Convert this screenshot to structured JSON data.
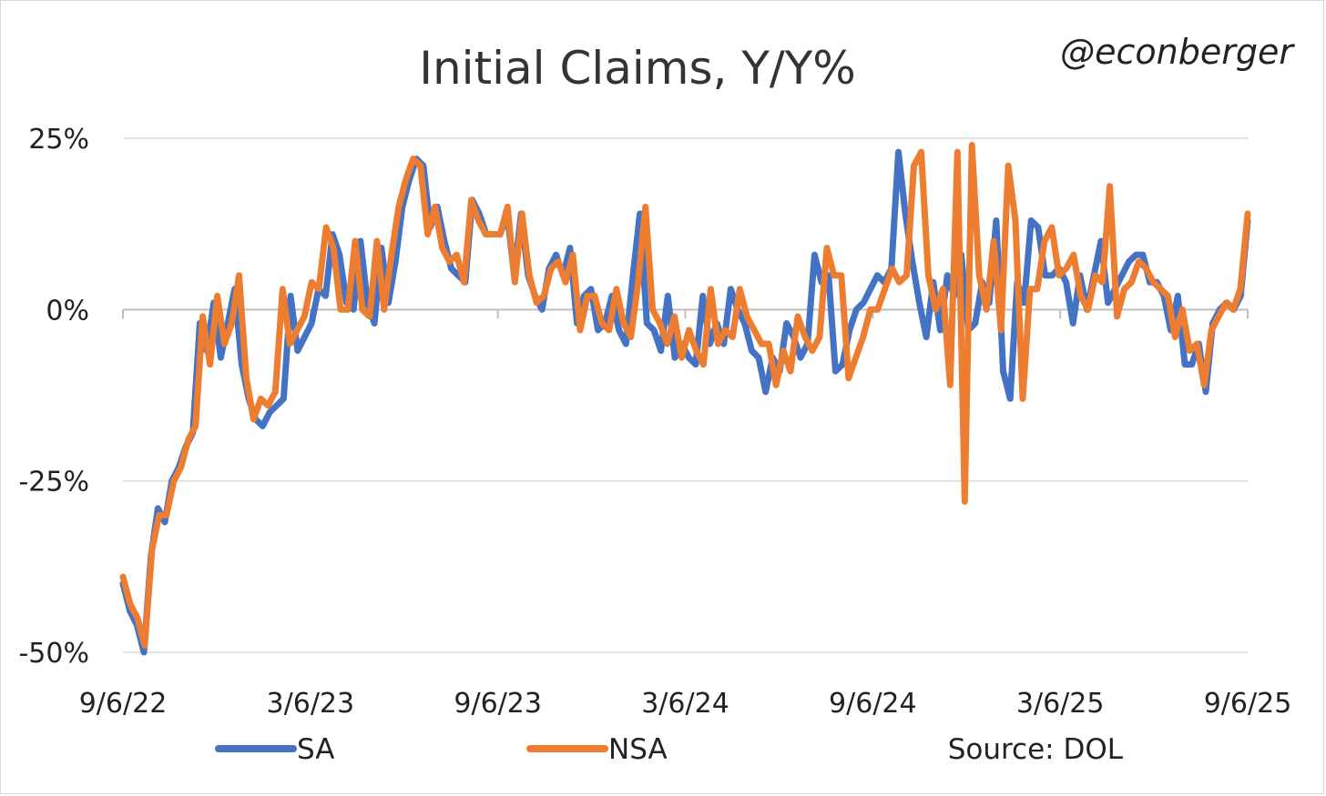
{
  "handle": "@econberger",
  "source": "Source: DOL",
  "chart_data": {
    "type": "line",
    "title": "Initial Claims, Y/Y%",
    "xlabel": "",
    "ylabel": "",
    "y_unit": "%",
    "ylim": [
      -50,
      25
    ],
    "y_ticks": [
      25,
      0,
      -25,
      -50
    ],
    "y_tick_labels": [
      "25%",
      "0%",
      "-25%",
      "-50%"
    ],
    "x_tick_labels": [
      "9/6/22",
      "3/6/23",
      "9/6/23",
      "3/6/24",
      "9/6/24",
      "3/6/25",
      "9/6/25"
    ],
    "x_start": "9/6/22",
    "x_end": "9/6/25",
    "grid": true,
    "legend_position": "bottom",
    "colors": {
      "SA": "#4472C4",
      "NSA": "#ED7D31"
    },
    "series": [
      {
        "name": "SA",
        "values": [
          -40,
          -44,
          -46,
          -50,
          -36,
          -29,
          -31,
          -25,
          -23,
          -20,
          -18,
          -2,
          -6,
          1,
          -7,
          -2,
          3,
          -8,
          -13,
          -16,
          -17,
          -15,
          -14,
          -13,
          2,
          -6,
          -4,
          -2,
          3,
          2,
          11,
          8,
          1,
          0,
          10,
          1,
          -2,
          9,
          1,
          7,
          15,
          19,
          22,
          21,
          12,
          15,
          10,
          6,
          5,
          4,
          16,
          14,
          11,
          11,
          11,
          14,
          5,
          14,
          5,
          2,
          0,
          6,
          8,
          5,
          9,
          -2,
          2,
          3,
          -3,
          -2,
          2,
          -3,
          -5,
          5,
          14,
          -2,
          -3,
          -6,
          2,
          -7,
          -5,
          -7,
          -8,
          2,
          -5,
          -2,
          -5,
          3,
          0,
          -2,
          -6,
          -7,
          -12,
          -7,
          -9,
          -2,
          -4,
          -7,
          -5,
          8,
          4,
          5,
          -9,
          -8,
          -3,
          0,
          1,
          3,
          5,
          4,
          6,
          23,
          14,
          7,
          1,
          -4,
          4,
          -3,
          5,
          2,
          8,
          -3,
          -2,
          4,
          1,
          13,
          -9,
          -13,
          4,
          1,
          13,
          12,
          5,
          5,
          6,
          4,
          -2,
          5,
          0,
          5,
          10,
          1,
          3,
          5,
          7,
          8,
          8,
          4,
          4,
          2,
          -3,
          2,
          -8,
          -8,
          -5,
          -12,
          -2,
          0,
          1,
          0,
          2,
          13
        ]
      },
      {
        "name": "NSA",
        "values": [
          -39,
          -43,
          -45,
          -49,
          -35,
          -30,
          -30,
          -25,
          -23,
          -19,
          -17,
          -1,
          -8,
          2,
          -5,
          -2,
          5,
          -10,
          -16,
          -13,
          -14,
          -12,
          3,
          -5,
          -3,
          -1,
          4,
          3,
          12,
          9,
          0,
          0,
          10,
          0,
          -1,
          10,
          0,
          8,
          15,
          19,
          22,
          21,
          11,
          15,
          9,
          7,
          8,
          4,
          16,
          13,
          11,
          11,
          11,
          15,
          4,
          14,
          5,
          1,
          2,
          6,
          7,
          4,
          8,
          -3,
          2,
          2,
          -2,
          -3,
          3,
          -2,
          -4,
          4,
          15,
          0,
          -2,
          -5,
          -1,
          -7,
          -3,
          -6,
          -8,
          3,
          -5,
          -3,
          -4,
          3,
          -1,
          -3,
          -5,
          -5,
          -11,
          -6,
          -9,
          -1,
          -4,
          -6,
          -4,
          9,
          5,
          5,
          -10,
          -7,
          -4,
          0,
          0,
          3,
          6,
          4,
          5,
          21,
          23,
          5,
          0,
          3,
          -11,
          23,
          -28,
          24,
          5,
          0,
          10,
          -3,
          21,
          13,
          -13,
          3,
          3,
          10,
          12,
          5,
          6,
          8,
          2,
          0,
          5,
          4,
          18,
          -1,
          3,
          4,
          7,
          6,
          4,
          3,
          2,
          -4,
          0,
          -6,
          -5,
          -11,
          -3,
          -1,
          1,
          0,
          3,
          14
        ]
      }
    ]
  }
}
